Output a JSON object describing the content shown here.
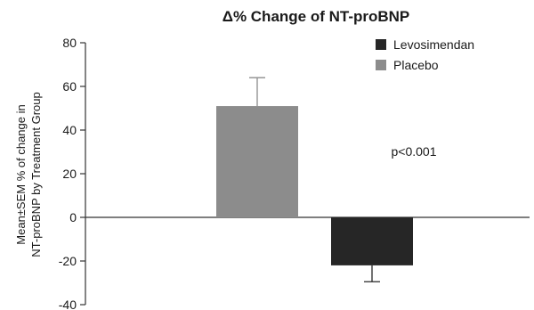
{
  "chart_data": {
    "type": "bar",
    "title": "Δ% Change of NT-proBNP",
    "ylabel_lines": [
      "Mean±SEM % of change in",
      "NT-proBNP by Treatment Group"
    ],
    "xlabel": "",
    "ylim": [
      -40,
      80
    ],
    "yticks": [
      80,
      60,
      40,
      20,
      0,
      -20,
      -40
    ],
    "ytick_labels": [
      "80",
      "60",
      "40",
      "20",
      "0",
      "-20",
      "-40"
    ],
    "grid": false,
    "legend_position": "top-right",
    "series": [
      {
        "name": "Placebo",
        "value": 51,
        "error": 13,
        "color": "#8c8c8c"
      },
      {
        "name": "Levosimendan",
        "value": -22,
        "error": 7.5,
        "color": "#262626"
      }
    ],
    "legend": [
      {
        "name": "Levosimendan",
        "color": "#262626"
      },
      {
        "name": "Placebo",
        "color": "#8c8c8c"
      }
    ],
    "annotation": "p<0.001"
  }
}
